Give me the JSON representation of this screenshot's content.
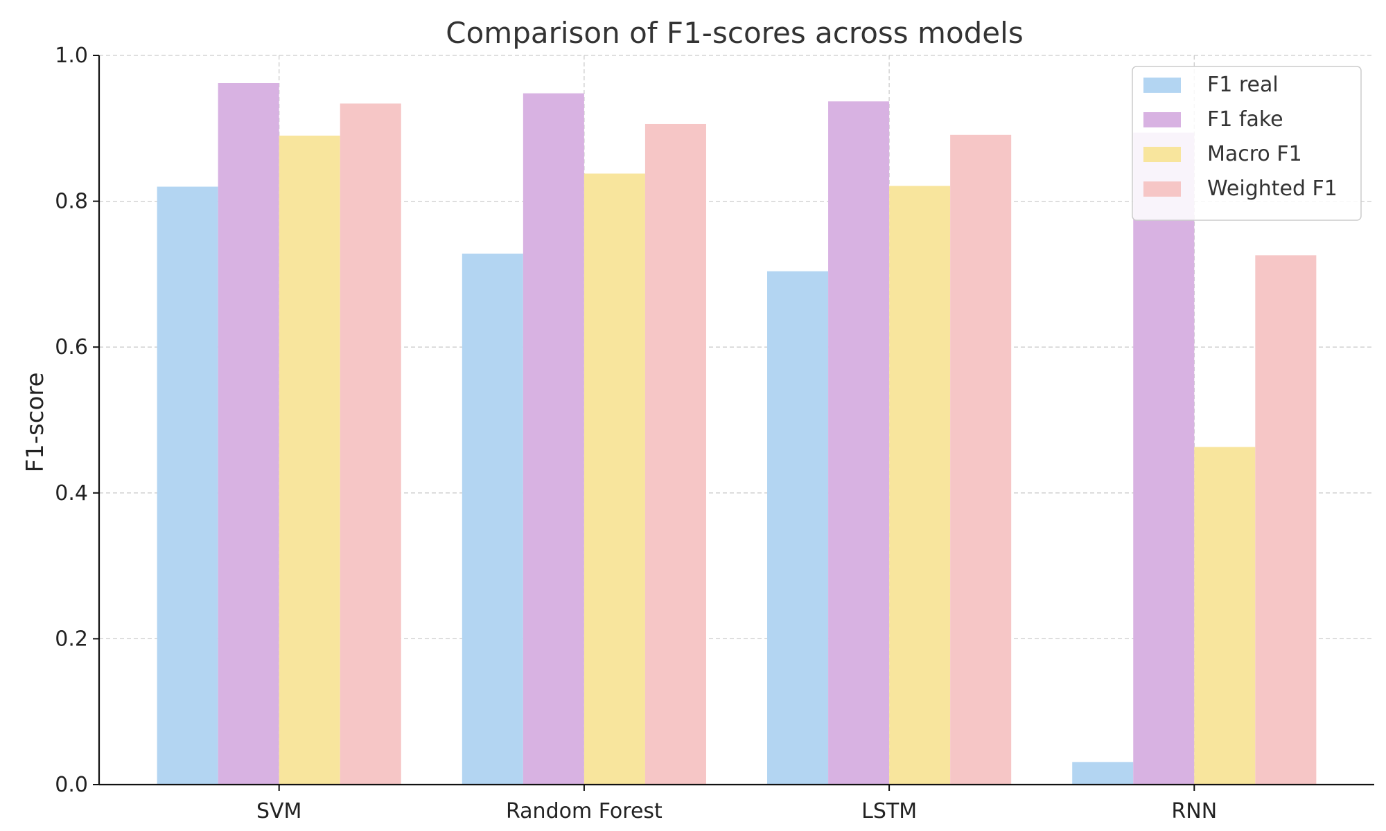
{
  "chart_data": {
    "type": "bar",
    "title": "Comparison of F1-scores across models",
    "xlabel": "",
    "ylabel": "F1-score",
    "categories": [
      "SVM",
      "Random Forest",
      "LSTM",
      "RNN"
    ],
    "ylim": [
      0,
      1.0
    ],
    "yticks": [
      "0.0",
      "0.2",
      "0.4",
      "0.6",
      "0.8",
      "1.0"
    ],
    "grid": true,
    "legend_position": "top-right",
    "series": [
      {
        "name": "F1 real",
        "color": "#b3d5f2",
        "values": [
          0.82,
          0.728,
          0.704,
          0.031
        ]
      },
      {
        "name": "F1 fake",
        "color": "#d8b2e2",
        "values": [
          0.962,
          0.948,
          0.937,
          0.894
        ]
      },
      {
        "name": "Macro F1",
        "color": "#f8e59d",
        "values": [
          0.89,
          0.838,
          0.821,
          0.463
        ]
      },
      {
        "name": "Weighted F1",
        "color": "#f6c6c6",
        "values": [
          0.934,
          0.906,
          0.891,
          0.726
        ]
      }
    ]
  }
}
